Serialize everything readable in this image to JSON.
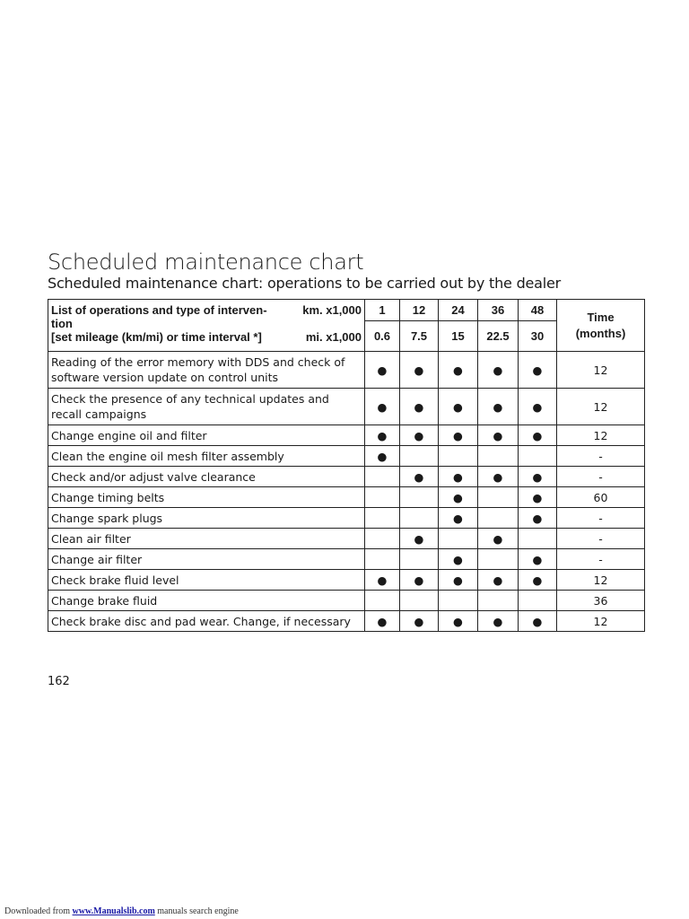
{
  "title": "Scheduled maintenance chart",
  "subtitle": "Scheduled maintenance chart: operations to be carried out by the dealer",
  "table": {
    "header_label": "List of operations and type of interven-tion [set mileage (km/mi) or time interval *]",
    "header_label_lines": [
      "List of operations and type of interven-",
      "tion",
      "[set mileage (km/mi) or time interval *]"
    ],
    "km_label": "km. x1,000",
    "mi_label": "mi. x1,000",
    "km": [
      "1",
      "12",
      "24",
      "36",
      "48"
    ],
    "mi": [
      "0.6",
      "7.5",
      "15",
      "22.5",
      "30"
    ],
    "time_header": [
      "Time",
      "(months)"
    ],
    "dot_symbol": "●",
    "rows": [
      {
        "op": "Reading of the error memory with DDS and check of software version update on control units",
        "checks": [
          1,
          1,
          1,
          1,
          1
        ],
        "time": "12"
      },
      {
        "op": "Check the presence of any technical updates and recall campaigns",
        "checks": [
          1,
          1,
          1,
          1,
          1
        ],
        "time": "12"
      },
      {
        "op": "Change engine oil and filter",
        "checks": [
          1,
          1,
          1,
          1,
          1
        ],
        "time": "12"
      },
      {
        "op": "Clean the engine oil mesh filter assembly",
        "checks": [
          1,
          0,
          0,
          0,
          0
        ],
        "time": "-"
      },
      {
        "op": "Check and/or adjust valve clearance",
        "checks": [
          0,
          1,
          1,
          1,
          1
        ],
        "time": "-"
      },
      {
        "op": "Change timing belts",
        "checks": [
          0,
          0,
          1,
          0,
          1
        ],
        "time": "60"
      },
      {
        "op": "Change spark plugs",
        "checks": [
          0,
          0,
          1,
          0,
          1
        ],
        "time": "-"
      },
      {
        "op": "Clean air filter",
        "checks": [
          0,
          1,
          0,
          1,
          0
        ],
        "time": "-"
      },
      {
        "op": "Change air filter",
        "checks": [
          0,
          0,
          1,
          0,
          1
        ],
        "time": "-"
      },
      {
        "op": "Check brake fluid level",
        "checks": [
          1,
          1,
          1,
          1,
          1
        ],
        "time": "12"
      },
      {
        "op": "Change brake fluid",
        "checks": [
          0,
          0,
          0,
          0,
          0
        ],
        "time": "36"
      },
      {
        "op": "Check brake disc and pad wear. Change, if necessary",
        "checks": [
          1,
          1,
          1,
          1,
          1
        ],
        "time": "12"
      }
    ]
  },
  "page_number": "162",
  "footer": {
    "prefix": "Downloaded from",
    "link": "www.Manualslib.com",
    "suffix": "manuals search engine"
  }
}
